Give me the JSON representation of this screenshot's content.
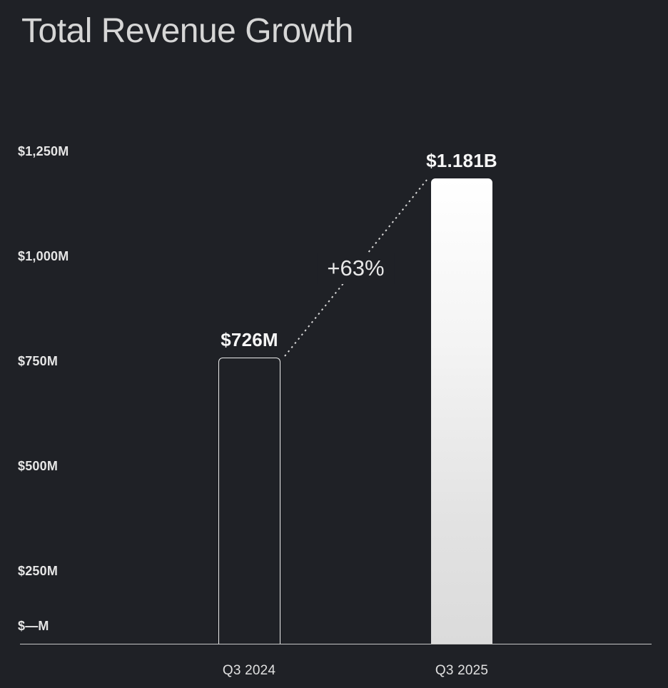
{
  "title": "Total Revenue Growth",
  "chart_data": {
    "type": "bar",
    "title": "Total Revenue Growth",
    "xlabel": "",
    "ylabel": "",
    "categories": [
      "Q3 2024",
      "Q3 2025"
    ],
    "values": [
      726,
      1181
    ],
    "value_labels": [
      "$726M",
      "$1.181B"
    ],
    "growth_label": "+63%",
    "growth_percent": 63,
    "y_axis_labels": [
      "$1,250M",
      "$1,000M",
      "$750M",
      "$500M",
      "$250M",
      "$—M"
    ],
    "y_axis_values": [
      1250,
      1000,
      750,
      500,
      250,
      0
    ],
    "ylim": [
      0,
      1250
    ],
    "grid": false,
    "legend": "none",
    "bar_styles": [
      "outline",
      "filled-gradient"
    ],
    "annotation_line": "dotted-connector-between-bar-tops",
    "colors": {
      "background": "#1f2126",
      "title_text": "#d6d6d6",
      "tick_text": "#e6e6e6",
      "value_text": "#f7f7f7",
      "axis_line": "#c6c6c6",
      "bar_outline": "#ebebeb",
      "bar_fill_top": "#ffffff",
      "bar_fill_bottom": "#dbdbdb",
      "dotted_line": "#d9d9d9"
    }
  }
}
